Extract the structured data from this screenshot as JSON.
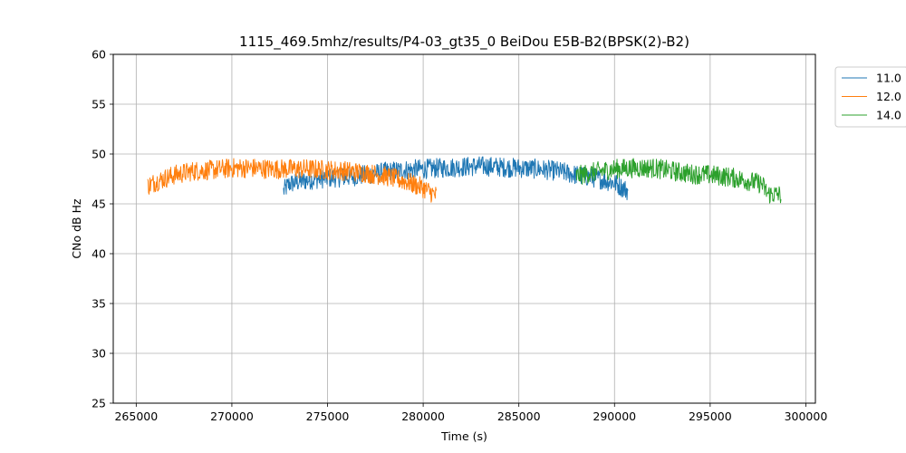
{
  "chart_data": {
    "type": "line",
    "title": "1115_469.5mhz/results/P4-03_gt35_0 BeiDou E5B-B2(BPSK(2)-B2)",
    "xlabel": "Time (s)",
    "ylabel": "CNo dB Hz",
    "xlim": [
      263800,
      300500
    ],
    "ylim": [
      25,
      60
    ],
    "xticks": [
      265000,
      270000,
      275000,
      280000,
      285000,
      290000,
      295000,
      300000
    ],
    "yticks": [
      25,
      30,
      35,
      40,
      45,
      50,
      55,
      60
    ],
    "grid": true,
    "legend_position": "outside-top-right",
    "series": [
      {
        "name": "11.0",
        "color": "#1f77b4",
        "noise": 1.0,
        "x": [
          272700,
          273000,
          274000,
          275000,
          276000,
          277000,
          278000,
          279000,
          280000,
          281000,
          282000,
          283000,
          284000,
          285000,
          286000,
          287000,
          288000,
          289000,
          290000,
          290700
        ],
        "y": [
          46.3,
          47.0,
          47.4,
          47.6,
          47.7,
          47.9,
          48.2,
          48.4,
          48.5,
          48.6,
          48.7,
          48.8,
          48.7,
          48.6,
          48.5,
          48.3,
          47.9,
          47.6,
          47.1,
          46.3
        ]
      },
      {
        "name": "12.0",
        "color": "#ff7f0e",
        "noise": 1.0,
        "x": [
          265600,
          266000,
          267000,
          268000,
          269000,
          270000,
          271000,
          272000,
          273000,
          274000,
          275000,
          276000,
          277000,
          278000,
          279000,
          280000,
          280700
        ],
        "y": [
          46.8,
          47.2,
          47.9,
          48.3,
          48.4,
          48.6,
          48.6,
          48.5,
          48.5,
          48.5,
          48.4,
          48.3,
          48.1,
          47.8,
          47.3,
          46.6,
          45.8
        ]
      },
      {
        "name": "14.0",
        "color": "#2ca02c",
        "noise": 1.0,
        "x": [
          288000,
          289000,
          290000,
          291000,
          292000,
          293000,
          294000,
          295000,
          296000,
          297000,
          297700,
          298000,
          298700
        ],
        "y": [
          47.8,
          48.2,
          48.5,
          48.6,
          48.6,
          48.3,
          48.0,
          47.9,
          47.7,
          47.3,
          47.0,
          46.0,
          45.9
        ]
      }
    ]
  }
}
